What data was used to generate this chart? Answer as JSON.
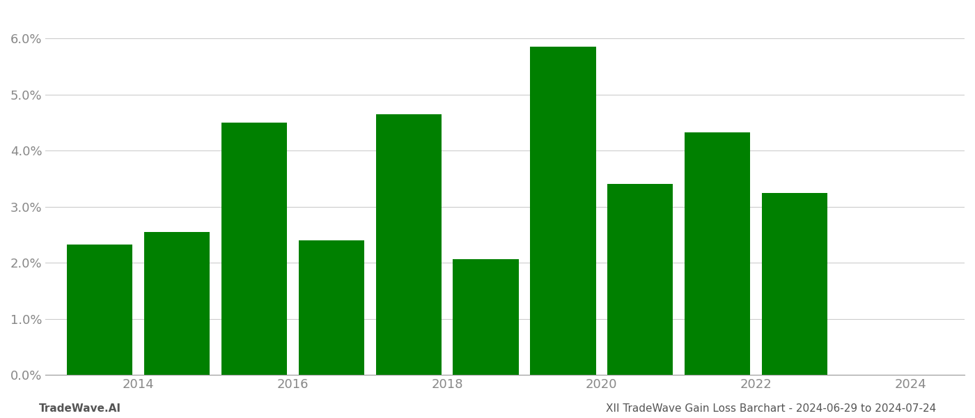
{
  "years": [
    2014,
    2015,
    2016,
    2017,
    2018,
    2019,
    2020,
    2021,
    2022,
    2023
  ],
  "values": [
    0.0233,
    0.0255,
    0.045,
    0.024,
    0.0465,
    0.0207,
    0.0585,
    0.034,
    0.0433,
    0.0325
  ],
  "bar_color": "#008000",
  "background_color": "#ffffff",
  "grid_color": "#cccccc",
  "ylim": [
    0.0,
    0.065
  ],
  "yticks": [
    0.0,
    0.01,
    0.02,
    0.03,
    0.04,
    0.05,
    0.06
  ],
  "xtick_positions": [
    0.5,
    2.5,
    4.5,
    6.5,
    8.5,
    10.5
  ],
  "xtick_labels": [
    "2014",
    "2016",
    "2018",
    "2020",
    "2022",
    "2024"
  ],
  "footer_left": "TradeWave.AI",
  "footer_right": "XII TradeWave Gain Loss Barchart - 2024-06-29 to 2024-07-24",
  "bar_width": 0.85,
  "spine_color": "#999999",
  "tick_color": "#888888",
  "tick_fontsize": 13,
  "footer_fontsize": 11
}
